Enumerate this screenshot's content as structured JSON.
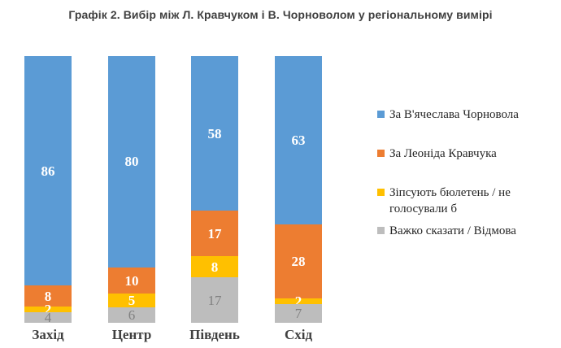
{
  "title": "Графік 2. Вибір між Л. Кравчуком і В. Чорноволом у регіональному вимірі",
  "chart_data": {
    "type": "bar",
    "stacked": true,
    "orientation": "vertical",
    "grid": false,
    "legend_position": "right",
    "ylim": [
      0,
      100
    ],
    "categories": [
      "Захід",
      "Центр",
      "Південь",
      "Схід"
    ],
    "series": [
      {
        "name": "За В'ячеслава Чорновола",
        "color": "#5B9BD5",
        "label_color": "#ffffff",
        "label_bold": true,
        "values": [
          86,
          80,
          58,
          63
        ]
      },
      {
        "name": "За Леоніда Кравчука",
        "color": "#ED7D31",
        "label_color": "#ffffff",
        "label_bold": true,
        "values": [
          8,
          10,
          17,
          28
        ]
      },
      {
        "name": "Зіпсують бюлетень / не голосували б",
        "color": "#FFC000",
        "label_color": "#ffffff",
        "label_bold": true,
        "values": [
          2,
          5,
          8,
          2
        ]
      },
      {
        "name": "Важко сказати / Відмова",
        "color": "#BDBDBD",
        "label_color": "#808080",
        "label_bold": false,
        "values": [
          4,
          6,
          17,
          7
        ]
      }
    ]
  }
}
